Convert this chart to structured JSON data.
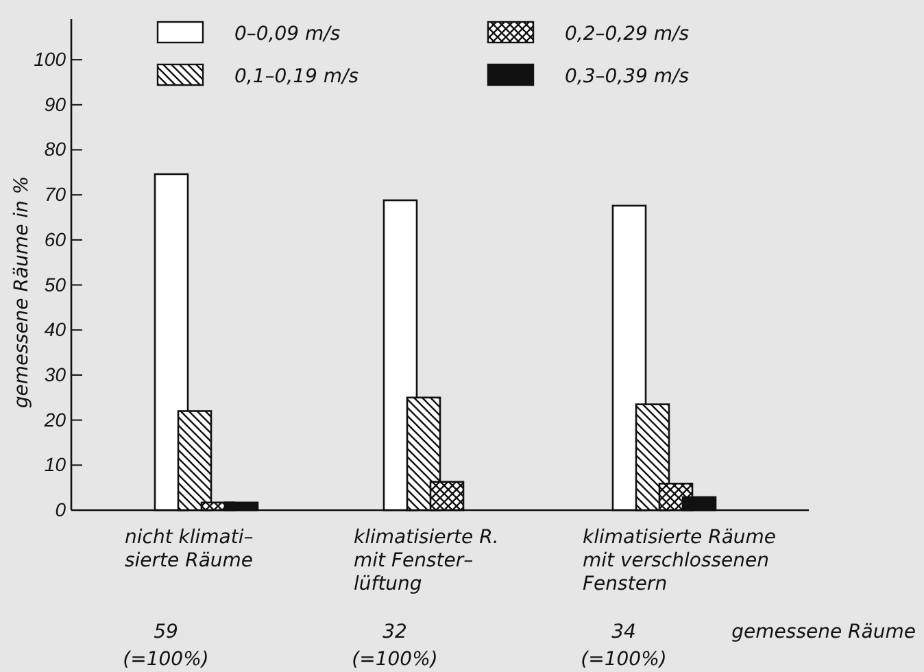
{
  "chart_data": {
    "type": "bar",
    "ylabel": "gemessene Räume in %",
    "categories": [
      "nicht klimati–\nsierte Räume",
      "klimatisierte R.\nmit Fenster–\nlüftung",
      "klimatisierte Räume\nmit verschlossenen\nFenstern"
    ],
    "series": [
      {
        "name": "0–0,09 m/s",
        "color": "#ffffff",
        "values": [
          74.6,
          68.8,
          67.6
        ]
      },
      {
        "name": "0,1–0,19 m/s",
        "color": "#111111",
        "values": [
          22,
          25,
          23.5
        ]
      },
      {
        "name": "0,2–0,29 m/s",
        "color": "#111111",
        "values": [
          1.7,
          6.3,
          5.9
        ]
      },
      {
        "name": "0,3–0,39 m/s",
        "color": "#111111",
        "values": [
          1.7,
          null,
          2.9
        ]
      }
    ],
    "ylim": [
      0,
      109
    ],
    "yticks": [
      0,
      10,
      20,
      30,
      40,
      50,
      60,
      70,
      80,
      90,
      100
    ],
    "legend": "top",
    "annotations": [
      "59\n(=100%)",
      "32\n(=100%)",
      "34\n(=100%)",
      "gemessene Räume"
    ]
  }
}
